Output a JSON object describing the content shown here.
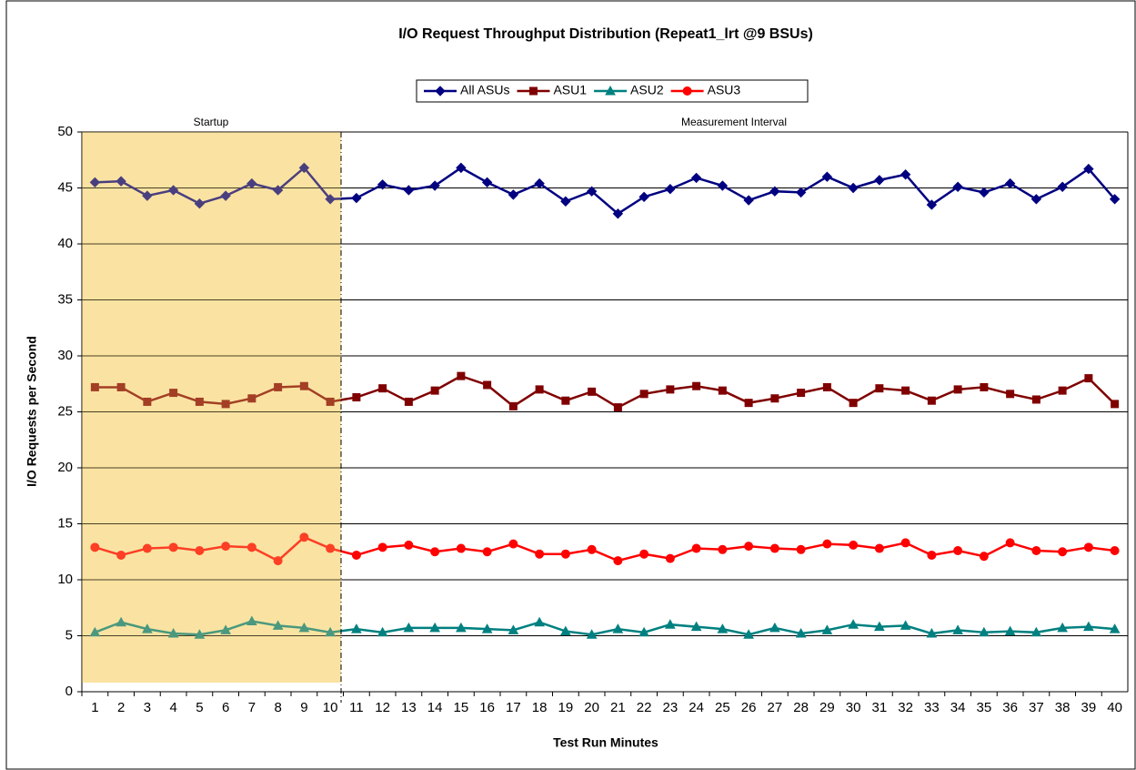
{
  "chart_data": {
    "type": "line",
    "title": "I/O Request Throughput Distribution (Repeat1_lrt @9 BSUs)",
    "x_label": "Test Run Minutes",
    "y_label": "I/O Requests per Second",
    "annotations": [
      "Startup",
      "Measurement Interval"
    ],
    "categories": [
      1,
      2,
      3,
      4,
      5,
      6,
      7,
      8,
      9,
      10,
      11,
      12,
      13,
      14,
      15,
      16,
      17,
      18,
      19,
      20,
      21,
      22,
      23,
      24,
      25,
      26,
      27,
      28,
      29,
      30,
      31,
      32,
      33,
      34,
      35,
      36,
      37,
      38,
      39,
      40
    ],
    "ylim": [
      0,
      50
    ],
    "yticks": [
      0,
      5,
      10,
      15,
      20,
      25,
      30,
      35,
      40,
      45,
      50
    ],
    "grid": true,
    "legend": "top",
    "series": [
      {
        "name": "All ASUs",
        "color": "#000080",
        "marker": "diamond",
        "values": [
          45.5,
          45.6,
          44.3,
          44.8,
          43.6,
          44.3,
          45.4,
          44.8,
          46.8,
          44.0,
          44.1,
          45.3,
          44.8,
          45.2,
          46.8,
          45.5,
          44.4,
          45.4,
          43.8,
          44.7,
          42.7,
          44.2,
          44.9,
          45.9,
          45.2,
          43.9,
          44.7,
          44.6,
          46.0,
          45.0,
          45.7,
          46.2,
          43.5,
          45.1,
          44.6,
          45.4,
          44.0,
          45.1,
          46.7,
          44.0
        ]
      },
      {
        "name": "ASU1",
        "color": "#800000",
        "marker": "square",
        "values": [
          27.2,
          27.2,
          25.9,
          26.7,
          25.9,
          25.7,
          26.2,
          27.2,
          27.3,
          25.9,
          26.3,
          27.1,
          25.9,
          26.9,
          28.2,
          27.4,
          25.5,
          27.0,
          26.0,
          26.8,
          25.4,
          26.6,
          27.0,
          27.3,
          26.9,
          25.8,
          26.2,
          26.7,
          27.2,
          25.8,
          27.1,
          26.9,
          26.0,
          27.0,
          27.2,
          26.6,
          26.1,
          26.9,
          28.0,
          25.7
        ]
      },
      {
        "name": "ASU2",
        "color": "#008080",
        "marker": "triangle",
        "values": [
          5.3,
          6.2,
          5.6,
          5.2,
          5.1,
          5.5,
          6.3,
          5.9,
          5.7,
          5.3,
          5.6,
          5.3,
          5.7,
          5.7,
          5.7,
          5.6,
          5.5,
          6.2,
          5.4,
          5.1,
          5.6,
          5.3,
          6.0,
          5.8,
          5.6,
          5.1,
          5.7,
          5.2,
          5.5,
          6.0,
          5.8,
          5.9,
          5.2,
          5.5,
          5.3,
          5.4,
          5.3,
          5.7,
          5.8,
          5.6
        ]
      },
      {
        "name": "ASU3",
        "color": "#ff0000",
        "marker": "circle",
        "values": [
          12.9,
          12.2,
          12.8,
          12.9,
          12.6,
          13.0,
          12.9,
          11.7,
          13.8,
          12.8,
          12.2,
          12.9,
          13.1,
          12.5,
          12.8,
          12.5,
          13.2,
          12.3,
          12.3,
          12.7,
          11.7,
          12.3,
          11.9,
          12.8,
          12.7,
          13.0,
          12.8,
          12.7,
          13.2,
          13.1,
          12.8,
          13.3,
          12.2,
          12.6,
          12.1,
          13.3,
          12.6,
          12.5,
          12.9,
          12.6
        ]
      }
    ]
  }
}
